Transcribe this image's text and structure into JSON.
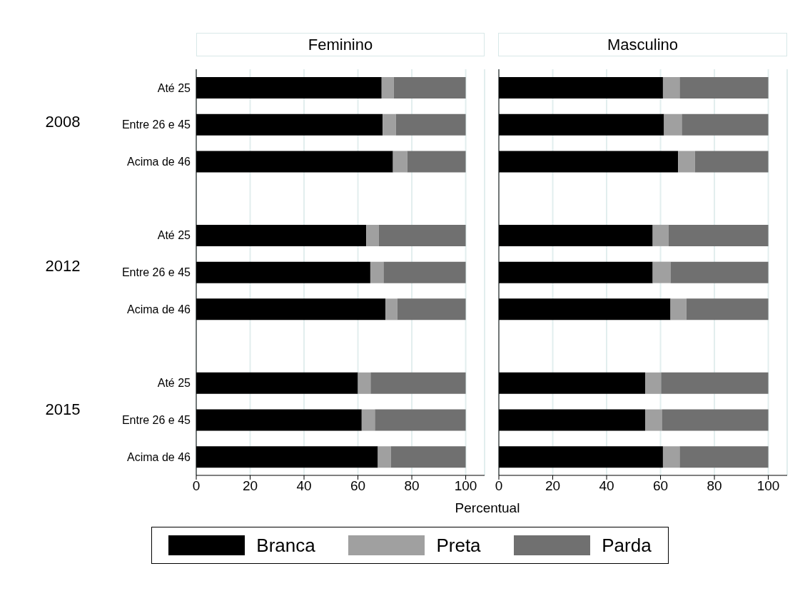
{
  "chart_data": [
    {
      "type": "bar",
      "orientation": "horizontal",
      "stacked": true,
      "title": "Feminino",
      "xlabel": "Percentual",
      "categories": [
        "Até 25",
        "Entre 26 e 45",
        "Acima de 46",
        null,
        "Até 25",
        "Entre 26 e 45",
        "Acima de 46",
        null,
        "Até 25",
        "Entre 26 e 45",
        "Acima de 46"
      ],
      "annotations": [
        "2008",
        "2012",
        "2015"
      ],
      "xlim": [
        0,
        107
      ],
      "xticks": [
        0,
        20,
        40,
        60,
        80,
        100
      ],
      "grid": "x",
      "legend": "bottom",
      "series": [
        {
          "name": "Branca",
          "color": "#000000",
          "values": [
            68.8,
            69.2,
            73.0,
            null,
            63.1,
            64.6,
            70.2,
            null,
            60.0,
            61.4,
            67.4
          ]
        },
        {
          "name": "Preta",
          "color": "#a0a0a0",
          "values": [
            4.5,
            4.9,
            5.3,
            null,
            4.6,
            4.9,
            4.4,
            null,
            4.7,
            4.9,
            4.8
          ]
        },
        {
          "name": "Parda",
          "color": "#707070",
          "values": [
            26.7,
            25.9,
            21.7,
            null,
            32.3,
            30.5,
            25.4,
            null,
            35.3,
            33.7,
            27.8
          ]
        }
      ]
    },
    {
      "type": "bar",
      "orientation": "horizontal",
      "stacked": true,
      "title": "Masculino",
      "categories": [
        null,
        null,
        null,
        null,
        null,
        null,
        null,
        null,
        null,
        null,
        null
      ],
      "xlim": [
        0,
        107
      ],
      "xticks": [
        0,
        20,
        40,
        60,
        80,
        100
      ],
      "grid": "x",
      "tick_labels": "x",
      "series": [
        {
          "color": "#000000",
          "values": [
            60.9,
            61.3,
            66.5,
            null,
            57.1,
            57.1,
            63.7,
            null,
            54.3,
            54.3,
            60.9
          ]
        },
        {
          "color": "#a0a0a0",
          "values": [
            6.2,
            6.6,
            6.3,
            null,
            5.9,
            6.6,
            5.9,
            null,
            5.9,
            6.2,
            6.2
          ]
        },
        {
          "color": "#707070",
          "values": [
            32.9,
            32.1,
            27.2,
            null,
            37.0,
            36.3,
            30.4,
            null,
            39.8,
            39.5,
            32.9
          ]
        }
      ]
    }
  ]
}
